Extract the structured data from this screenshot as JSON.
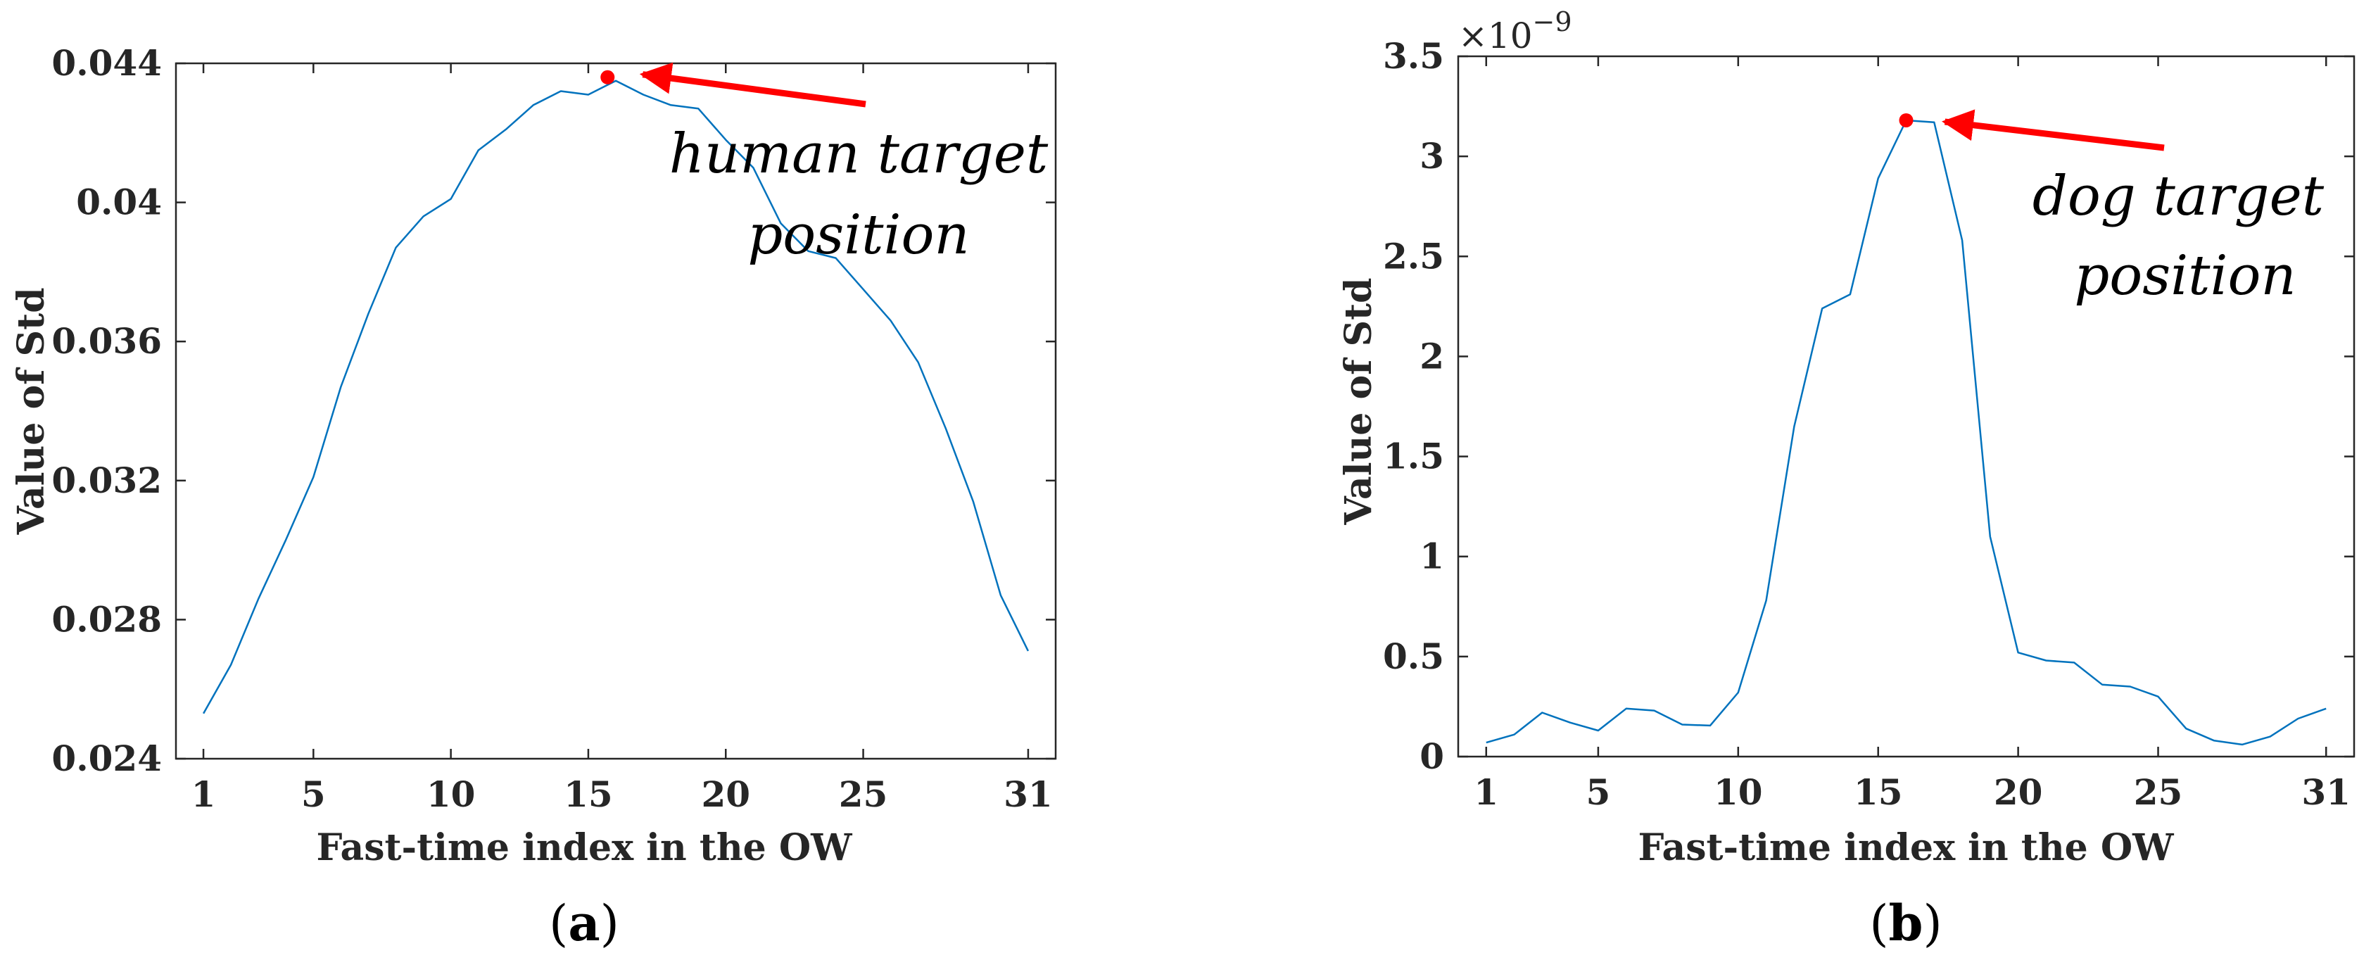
{
  "colors": {
    "line": "#0072BD",
    "arrow": "#FF0000",
    "marker": "#FF0000",
    "axis": "#262626"
  },
  "chart_data": [
    {
      "type": "line",
      "panel": "a",
      "caption": {
        "open": "(",
        "letter": "a",
        "close": ")"
      },
      "xlabel": "Fast-time index in the OW",
      "ylabel": "Value of Std",
      "xlim": [
        0,
        32
      ],
      "ylim": [
        0.024,
        0.044
      ],
      "xticks": [
        1,
        5,
        10,
        15,
        20,
        25,
        31
      ],
      "xtick_labels": [
        "1",
        "5",
        "10",
        "15",
        "20",
        "25",
        "31"
      ],
      "yticks": [
        0.024,
        0.028,
        0.032,
        0.036,
        0.04,
        0.044
      ],
      "ytick_labels": [
        "0.024",
        "0.028",
        "0.032",
        "0.036",
        "0.04",
        "0.044"
      ],
      "x": [
        1,
        2,
        3,
        4,
        5,
        6,
        7,
        8,
        9,
        10,
        11,
        12,
        13,
        14,
        15,
        16,
        17,
        18,
        19,
        20,
        21,
        22,
        23,
        24,
        25,
        26,
        27,
        28,
        29,
        30,
        31
      ],
      "values": [
        0.0253,
        0.0267,
        0.0286,
        0.0303,
        0.0321,
        0.0347,
        0.0368,
        0.0387,
        0.0396,
        0.0401,
        0.0415,
        0.0421,
        0.0428,
        0.0432,
        0.0431,
        0.0435,
        0.0431,
        0.0428,
        0.0427,
        0.0418,
        0.041,
        0.0394,
        0.0386,
        0.0384,
        0.0375,
        0.0366,
        0.0354,
        0.0335,
        0.0314,
        0.0287,
        0.0271
      ],
      "marker_point": {
        "x": 15.7,
        "y": 0.0436
      },
      "annotation": {
        "line1": "human target",
        "line2": "position"
      }
    },
    {
      "type": "line",
      "panel": "b",
      "caption": {
        "open": "(",
        "letter": "b",
        "close": ")"
      },
      "xlabel": "Fast-time index in the OW",
      "ylabel": "Value of Std",
      "xlim": [
        0,
        32
      ],
      "ylim": [
        0,
        3.5
      ],
      "exponent_label": {
        "base": "×10",
        "power": "−9"
      },
      "xticks": [
        1,
        5,
        10,
        15,
        20,
        25,
        31
      ],
      "xtick_labels": [
        "1",
        "5",
        "10",
        "15",
        "20",
        "25",
        "31"
      ],
      "yticks": [
        0,
        0.5,
        1,
        1.5,
        2,
        2.5,
        3,
        3.5
      ],
      "ytick_labels": [
        "0",
        "0.5",
        "1",
        "1.5",
        "2",
        "2.5",
        "3",
        "3.5"
      ],
      "x": [
        1,
        2,
        3,
        4,
        5,
        6,
        7,
        8,
        9,
        10,
        11,
        12,
        13,
        14,
        15,
        16,
        17,
        18,
        19,
        20,
        21,
        22,
        23,
        24,
        25,
        26,
        27,
        28,
        29,
        30,
        31
      ],
      "values": [
        0.07,
        0.11,
        0.22,
        0.17,
        0.13,
        0.24,
        0.23,
        0.16,
        0.155,
        0.32,
        0.78,
        1.65,
        2.24,
        2.31,
        2.89,
        3.18,
        3.17,
        2.58,
        1.1,
        0.52,
        0.48,
        0.47,
        0.36,
        0.35,
        0.3,
        0.14,
        0.08,
        0.06,
        0.1,
        0.19,
        0.24
      ],
      "marker_point": {
        "x": 16,
        "y": 3.18
      },
      "annotation": {
        "line1": "dog target",
        "line2": "position"
      }
    }
  ]
}
